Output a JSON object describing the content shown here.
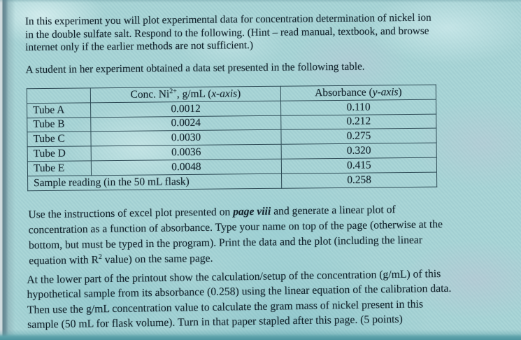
{
  "colors": {
    "paper": "#a7d4d6",
    "ink": "#15262f",
    "table_border": "#2d4a55",
    "left_edge_shadow": "#64858f",
    "bottom_edge_shadow": "#4d95a0"
  },
  "intro": {
    "lines": [
      "In this experiment you will plot experimental data for concentration determination of nickel ion",
      "in the double sulfate salt. Respond to the following. (Hint – read manual, textbook, and browse",
      "internet only if the earlier methods are not sufficient.)"
    ]
  },
  "student_line": "A student in her experiment obtained a data set presented in the following table.",
  "table": {
    "header": {
      "col1": "",
      "conc": {
        "pre": "Conc. Ni",
        "sup": "2+",
        "mid": ", g/mL (",
        "italic": "x-axis",
        "post": ")"
      },
      "abs": {
        "pre": "Absorbance (",
        "italic": "y-axis",
        "post": ")"
      }
    },
    "rows": [
      {
        "label": "Tube A",
        "conc": "0.0012",
        "abs": "0.110"
      },
      {
        "label": "Tube B",
        "conc": "0.0024",
        "abs": "0.212"
      },
      {
        "label": "Tube C",
        "conc": "0.0030",
        "abs": "0.275"
      },
      {
        "label": "Tube D",
        "conc": "0.0036",
        "abs": "0.320"
      },
      {
        "label": "Tube E",
        "conc": "0.0048",
        "abs": "0.415"
      }
    ],
    "footer": {
      "label": "Sample reading (in the 50 mL flask)",
      "abs": "0.258"
    }
  },
  "excel": {
    "line1": {
      "pre": "Use the instructions of excel plot presented on ",
      "emph": "page viii",
      "post": " and generate a linear plot of"
    },
    "line2": "concentration as a function of absorbance. Type your name on top of the page (otherwise at the",
    "line3": "bottom, but must be typed in the program). Print the data and the plot (including the linear",
    "line4": {
      "pre": "equation with R",
      "sup": "2",
      "post": " value) on the same page."
    }
  },
  "calc": {
    "lines": [
      "At the lower part of the printout show the calculation/setup of the concentration (g/mL) of this",
      "hypothetical sample from its absorbance (0.258) using the linear equation of the calibration data.",
      "Then use the g/mL concentration value to calculate the gram mass of nickel present in this",
      "sample (50 mL for flask volume). Turn in that paper stapled after this page. (5 points)"
    ]
  }
}
